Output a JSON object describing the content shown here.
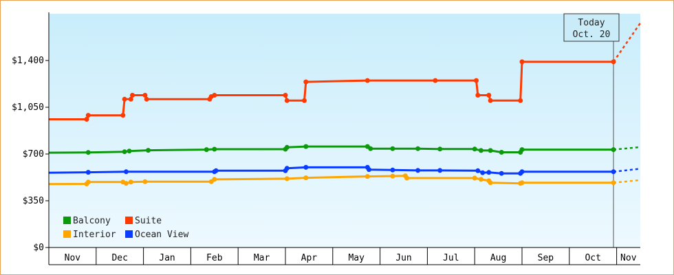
{
  "chart_data": {
    "type": "line",
    "y_axis": {
      "range": [
        0,
        1750
      ],
      "ticks": [
        {
          "value": 0,
          "label": "$0"
        },
        {
          "value": 350,
          "label": "$350"
        },
        {
          "value": 700,
          "label": "$700"
        },
        {
          "value": 1050,
          "label": "$1,050"
        },
        {
          "value": 1400,
          "label": "$1,400"
        }
      ]
    },
    "x_axis": {
      "months": [
        "Nov",
        "Dec",
        "Jan",
        "Feb",
        "Mar",
        "Apr",
        "May",
        "Jun",
        "Jul",
        "Aug",
        "Sep",
        "Oct",
        "Nov"
      ],
      "month_starts": [
        "2021-10-27",
        "2021-11-26",
        "2021-12-26",
        "2022-01-25",
        "2022-02-24",
        "2022-03-26",
        "2022-04-25",
        "2022-05-25",
        "2022-06-24",
        "2022-07-24",
        "2022-08-23",
        "2022-09-22",
        "2022-10-22",
        "2022-11-06"
      ]
    },
    "today": {
      "line1": "Today",
      "line2": "Oct. 20",
      "date": "2022-10-20"
    },
    "legend": {
      "placement": "bottom-left"
    },
    "series": [
      {
        "name": "Suite",
        "color": "#ff3a00",
        "points": [
          [
            "2021-10-27",
            960
          ],
          [
            "2021-11-20",
            960
          ],
          [
            "2021-11-21",
            990
          ],
          [
            "2021-12-13",
            990
          ],
          [
            "2021-12-14",
            1110
          ],
          [
            "2021-12-18",
            1110
          ],
          [
            "2021-12-19",
            1140
          ],
          [
            "2021-12-27",
            1140
          ],
          [
            "2021-12-28",
            1110
          ],
          [
            "2022-02-06",
            1110
          ],
          [
            "2022-02-07",
            1130
          ],
          [
            "2022-02-09",
            1140
          ],
          [
            "2022-03-26",
            1140
          ],
          [
            "2022-03-27",
            1100
          ],
          [
            "2022-04-07",
            1100
          ],
          [
            "2022-04-08",
            1240
          ],
          [
            "2022-05-17",
            1250
          ],
          [
            "2022-06-29",
            1250
          ],
          [
            "2022-07-25",
            1250
          ],
          [
            "2022-07-26",
            1140
          ],
          [
            "2022-08-02",
            1140
          ],
          [
            "2022-08-03",
            1100
          ],
          [
            "2022-08-22",
            1100
          ],
          [
            "2022-08-23",
            1390
          ],
          [
            "2022-10-20",
            1390
          ]
        ],
        "forecast": [
          [
            "2022-10-20",
            1390
          ],
          [
            "2022-11-06",
            1680
          ]
        ]
      },
      {
        "name": "Balcony",
        "color": "#0c9a0c",
        "points": [
          [
            "2021-10-27",
            710
          ],
          [
            "2021-11-21",
            712
          ],
          [
            "2021-12-14",
            717
          ],
          [
            "2021-12-17",
            722
          ],
          [
            "2021-12-29",
            728
          ],
          [
            "2022-02-04",
            733
          ],
          [
            "2022-02-09",
            736
          ],
          [
            "2022-03-26",
            736
          ],
          [
            "2022-03-27",
            750
          ],
          [
            "2022-04-08",
            756
          ],
          [
            "2022-05-17",
            756
          ],
          [
            "2022-05-19",
            740
          ],
          [
            "2022-06-02",
            740
          ],
          [
            "2022-06-18",
            740
          ],
          [
            "2022-07-02",
            737
          ],
          [
            "2022-07-24",
            737
          ],
          [
            "2022-07-28",
            726
          ],
          [
            "2022-08-03",
            726
          ],
          [
            "2022-08-10",
            713
          ],
          [
            "2022-08-22",
            713
          ],
          [
            "2022-08-23",
            733
          ],
          [
            "2022-10-20",
            733
          ]
        ],
        "forecast": [
          [
            "2022-10-20",
            733
          ],
          [
            "2022-11-06",
            752
          ]
        ]
      },
      {
        "name": "Ocean View",
        "color": "#0a3cff",
        "points": [
          [
            "2021-10-27",
            560
          ],
          [
            "2021-11-21",
            563
          ],
          [
            "2021-12-15",
            567
          ],
          [
            "2022-02-09",
            567
          ],
          [
            "2022-02-10",
            575
          ],
          [
            "2022-03-26",
            575
          ],
          [
            "2022-03-27",
            593
          ],
          [
            "2022-04-08",
            600
          ],
          [
            "2022-05-17",
            600
          ],
          [
            "2022-05-18",
            583
          ],
          [
            "2022-06-02",
            580
          ],
          [
            "2022-06-18",
            577
          ],
          [
            "2022-07-02",
            577
          ],
          [
            "2022-07-26",
            575
          ],
          [
            "2022-07-29",
            560
          ],
          [
            "2022-08-02",
            562
          ],
          [
            "2022-08-10",
            555
          ],
          [
            "2022-08-22",
            555
          ],
          [
            "2022-08-23",
            567
          ],
          [
            "2022-10-20",
            567
          ]
        ],
        "forecast": [
          [
            "2022-10-20",
            567
          ],
          [
            "2022-11-06",
            590
          ]
        ]
      },
      {
        "name": "Interior",
        "color": "#ffa500",
        "points": [
          [
            "2021-10-27",
            475
          ],
          [
            "2021-11-20",
            476
          ],
          [
            "2021-11-21",
            490
          ],
          [
            "2021-12-13",
            490
          ],
          [
            "2021-12-15",
            480
          ],
          [
            "2021-12-18",
            490
          ],
          [
            "2021-12-27",
            493
          ],
          [
            "2022-02-07",
            493
          ],
          [
            "2022-02-09",
            510
          ],
          [
            "2022-03-27",
            515
          ],
          [
            "2022-04-08",
            522
          ],
          [
            "2022-05-17",
            532
          ],
          [
            "2022-06-02",
            535
          ],
          [
            "2022-06-10",
            537
          ],
          [
            "2022-06-11",
            520
          ],
          [
            "2022-07-24",
            520
          ],
          [
            "2022-07-28",
            510
          ],
          [
            "2022-08-02",
            500
          ],
          [
            "2022-08-03",
            485
          ],
          [
            "2022-08-22",
            480
          ],
          [
            "2022-08-23",
            485
          ],
          [
            "2022-10-20",
            485
          ]
        ],
        "forecast": [
          [
            "2022-10-20",
            485
          ],
          [
            "2022-11-06",
            505
          ]
        ]
      }
    ]
  },
  "legend_entries": [
    {
      "name": "Balcony",
      "color": "#0c9a0c"
    },
    {
      "name": "Suite",
      "color": "#ff3a00"
    },
    {
      "name": "Interior",
      "color": "#ffa500"
    },
    {
      "name": "Ocean View",
      "color": "#0a3cff"
    }
  ]
}
